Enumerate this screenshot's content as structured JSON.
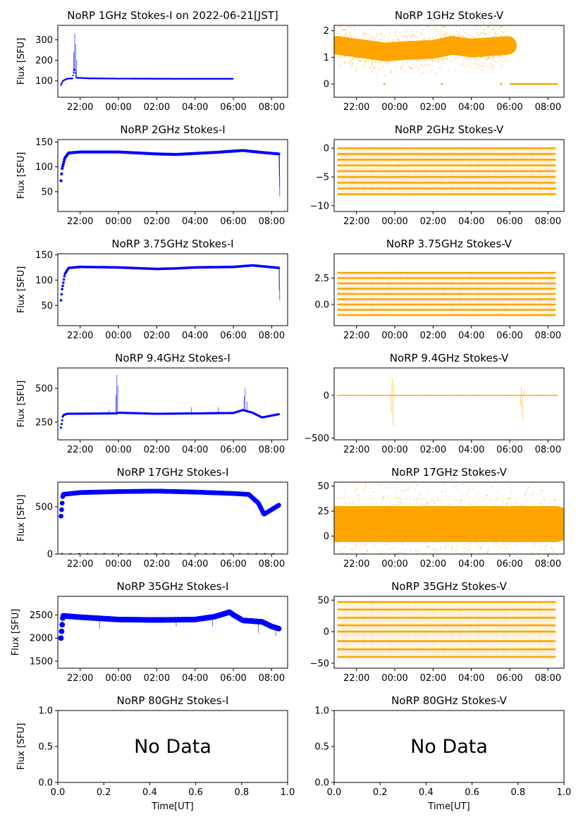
{
  "figure": {
    "colors": {
      "stokes_i": "#0000ff",
      "stokes_v": "#ffa500",
      "axis": "#000000",
      "background": "#ffffff"
    },
    "time_ticks": [
      "22:00",
      "00:00",
      "02:00",
      "04:00",
      "06:00",
      "08:00"
    ],
    "fraction_ticks": [
      "0.0",
      "0.2",
      "0.4",
      "0.6",
      "0.8",
      "1.0"
    ],
    "xlabel": "Time[UT]",
    "ylabel_i": "Flux [SFU]",
    "no_data_text": "No Data"
  },
  "chart_data": [
    {
      "id": "1ghz-i",
      "type": "scatter",
      "title": "NoRP 1GHz Stokes-I on 2022-06-21[JST]",
      "ylabel": "Flux [SFU]",
      "ylim": [
        20,
        370
      ],
      "yticks": [
        100,
        200,
        300
      ],
      "x_range_ut": [
        "20:50",
        "08:50"
      ],
      "data_span_ut": [
        "21:00",
        "06:00"
      ],
      "series": [
        {
          "color": "#0000ff",
          "profile": [
            [
              21.0,
              80
            ],
            [
              21.1,
              100
            ],
            [
              21.3,
              110
            ],
            [
              21.6,
              112
            ],
            [
              21.7,
              160
            ],
            [
              21.8,
              115
            ],
            [
              22.5,
              112
            ],
            [
              24,
              111
            ],
            [
              27,
              110
            ],
            [
              30,
              110
            ]
          ],
          "band": 4,
          "spikes": [
            [
              21.7,
              330
            ],
            [
              21.75,
              280
            ],
            [
              21.65,
              240
            ],
            [
              21.8,
              200
            ]
          ]
        }
      ]
    },
    {
      "id": "1ghz-v",
      "type": "scatter",
      "title": "NoRP 1GHz Stokes-V",
      "ylim": [
        -0.5,
        2.2
      ],
      "yticks": [
        0,
        1,
        2
      ],
      "x_range_ut": [
        "20:50",
        "08:50"
      ],
      "series": [
        {
          "color": "#ffa500",
          "profile": [
            [
              21.0,
              1.45
            ],
            [
              22.0,
              1.35
            ],
            [
              23.5,
              1.2
            ],
            [
              24.5,
              1.25
            ],
            [
              26.0,
              1.3
            ],
            [
              27.0,
              1.45
            ],
            [
              28.0,
              1.35
            ],
            [
              29.0,
              1.4
            ],
            [
              29.9,
              1.45
            ]
          ],
          "band": 0.35,
          "spread": 0.75,
          "zero_segments": [
            [
              23.4,
              23.5
            ],
            [
              26.4,
              26.5
            ],
            [
              29.5,
              29.6
            ],
            [
              30.0,
              32.5
            ]
          ]
        }
      ]
    },
    {
      "id": "2ghz-i",
      "type": "scatter",
      "title": "NoRP 2GHz Stokes-I",
      "ylabel": "Flux [SFU]",
      "ylim": [
        10,
        155
      ],
      "yticks": [
        50,
        100,
        150
      ],
      "x_range_ut": [
        "20:50",
        "08:50"
      ],
      "series": [
        {
          "color": "#0000ff",
          "profile": [
            [
              21.0,
              72
            ],
            [
              21.05,
              95
            ],
            [
              21.2,
              118
            ],
            [
              21.4,
              128
            ],
            [
              22,
              130
            ],
            [
              24,
              130
            ],
            [
              26,
              126
            ],
            [
              27,
              125
            ],
            [
              28,
              127
            ],
            [
              29,
              129
            ],
            [
              30.5,
              133
            ],
            [
              31.5,
              129
            ],
            [
              32.4,
              126
            ]
          ],
          "band": 3,
          "spikes": [
            [
              32.4,
              40
            ],
            [
              32.4,
              60
            ],
            [
              32.38,
              80
            ]
          ]
        }
      ]
    },
    {
      "id": "2ghz-v",
      "type": "scatter",
      "title": "NoRP 2GHz Stokes-V",
      "ylim": [
        -11,
        1.5
      ],
      "yticks": [
        -10,
        -5,
        0
      ],
      "x_range_ut": [
        "20:50",
        "08:50"
      ],
      "series": [
        {
          "color": "#ffa500",
          "levels": [
            0,
            -1,
            -2,
            -3,
            -4,
            -5,
            -6,
            -7,
            -8
          ],
          "span": [
            21.0,
            32.4
          ]
        }
      ]
    },
    {
      "id": "375ghz-i",
      "type": "scatter",
      "title": "NoRP 3.75GHz Stokes-I",
      "ylabel": "Flux [SFU]",
      "ylim": [
        10,
        152
      ],
      "yticks": [
        50,
        100,
        150
      ],
      "x_range_ut": [
        "20:50",
        "08:50"
      ],
      "series": [
        {
          "color": "#0000ff",
          "profile": [
            [
              21.0,
              60
            ],
            [
              21.05,
              80
            ],
            [
              21.2,
              112
            ],
            [
              21.4,
              124
            ],
            [
              22,
              126
            ],
            [
              24,
              125
            ],
            [
              26,
              122
            ],
            [
              27,
              123
            ],
            [
              28,
              125
            ],
            [
              30,
              126
            ],
            [
              31,
              129
            ],
            [
              32.4,
              124
            ]
          ],
          "band": 2.5,
          "spikes": [
            [
              32.4,
              60
            ],
            [
              32.38,
              80
            ]
          ]
        }
      ]
    },
    {
      "id": "375ghz-v",
      "type": "scatter",
      "title": "NoRP 3.75GHz Stokes-V",
      "ylim": [
        -2.0,
        4.8
      ],
      "yticks": [
        0.0,
        2.5
      ],
      "x_range_ut": [
        "20:50",
        "08:50"
      ],
      "series": [
        {
          "color": "#ffa500",
          "levels": [
            -1.0,
            -0.5,
            0.0,
            0.5,
            1.0,
            1.5,
            2.0,
            2.5,
            3.0
          ],
          "span": [
            21.0,
            32.4
          ]
        }
      ]
    },
    {
      "id": "94ghz-i",
      "type": "scatter",
      "title": "NoRP 9.4GHz Stokes-I",
      "ylabel": "Flux [SFU]",
      "ylim": [
        120,
        650
      ],
      "yticks": [
        250,
        500
      ],
      "x_range_ut": [
        "20:50",
        "08:50"
      ],
      "series": [
        {
          "color": "#0000ff",
          "profile": [
            [
              21.0,
              210
            ],
            [
              21.1,
              300
            ],
            [
              21.3,
              312
            ],
            [
              23.9,
              315
            ],
            [
              24,
              320
            ],
            [
              26,
              312
            ],
            [
              28,
              315
            ],
            [
              30,
              318
            ],
            [
              30.5,
              340
            ],
            [
              31.0,
              320
            ],
            [
              31.5,
              285
            ],
            [
              32.4,
              310
            ]
          ],
          "band": 8,
          "spikes": [
            [
              23.9,
              600
            ],
            [
              23.95,
              520
            ],
            [
              23.85,
              450
            ],
            [
              30.6,
              500
            ],
            [
              30.55,
              440
            ],
            [
              30.7,
              400
            ],
            [
              27.8,
              360
            ],
            [
              29.2,
              360
            ],
            [
              23.5,
              340
            ]
          ]
        }
      ]
    },
    {
      "id": "94ghz-v",
      "type": "scatter",
      "title": "NoRP 9.4GHz Stokes-V",
      "ylim": [
        -520,
        320
      ],
      "yticks": [
        -500,
        0
      ],
      "x_range_ut": [
        "20:50",
        "08:50"
      ],
      "series": [
        {
          "color": "#ffa500",
          "profile": [
            [
              21.0,
              0
            ],
            [
              32.5,
              0
            ]
          ],
          "band": 6,
          "spikes": [
            [
              23.85,
              200
            ],
            [
              23.9,
              -350
            ],
            [
              23.8,
              -200
            ],
            [
              23.95,
              120
            ],
            [
              30.6,
              100
            ],
            [
              30.65,
              -280
            ],
            [
              30.55,
              -120
            ],
            [
              30.75,
              60
            ]
          ]
        }
      ]
    },
    {
      "id": "17ghz-i",
      "type": "scatter",
      "title": "NoRP 17GHz Stokes-I",
      "ylabel": "Flux [SFU]",
      "ylim": [
        0,
        760
      ],
      "yticks": [
        0,
        500
      ],
      "x_range_ut": [
        "20:50",
        "08:50"
      ],
      "series": [
        {
          "color": "#0000ff",
          "profile": [
            [
              21.0,
              400
            ],
            [
              21.1,
              630
            ],
            [
              22,
              650
            ],
            [
              24,
              660
            ],
            [
              26,
              665
            ],
            [
              28,
              655
            ],
            [
              30,
              640
            ],
            [
              30.8,
              630
            ],
            [
              31.3,
              540
            ],
            [
              31.6,
              420
            ],
            [
              32.0,
              470
            ],
            [
              32.4,
              520
            ]
          ],
          "band": 25,
          "zero_segments": [
            [
              21.0,
              32.5
            ]
          ]
        }
      ]
    },
    {
      "id": "17ghz-v",
      "type": "scatter",
      "title": "NoRP 17GHz Stokes-V",
      "ylim": [
        -18,
        54
      ],
      "yticks": [
        0,
        25,
        50
      ],
      "x_range_ut": [
        "20:50",
        "08:50"
      ],
      "series": [
        {
          "color": "#ffa500",
          "profile": [
            [
              21.0,
              12
            ],
            [
              32.4,
              12
            ]
          ],
          "band": 18,
          "spread": 40,
          "zero_segments": [
            [
              20.9,
              21.05
            ],
            [
              32.4,
              32.6
            ]
          ]
        }
      ]
    },
    {
      "id": "35ghz-i",
      "type": "scatter",
      "title": "NoRP 35GHz Stokes-I",
      "ylabel": "Flux [SFU]",
      "ylim": [
        1350,
        2900
      ],
      "yticks": [
        1500,
        2000,
        2500
      ],
      "x_range_ut": [
        "20:50",
        "08:50"
      ],
      "series": [
        {
          "color": "#0000ff",
          "profile": [
            [
              21.0,
              2000
            ],
            [
              21.1,
              2480
            ],
            [
              22,
              2450
            ],
            [
              24,
              2400
            ],
            [
              26,
              2390
            ],
            [
              28,
              2400
            ],
            [
              29,
              2460
            ],
            [
              29.8,
              2560
            ],
            [
              30.0,
              2500
            ],
            [
              30.5,
              2380
            ],
            [
              31.5,
              2350
            ],
            [
              32.0,
              2250
            ],
            [
              32.4,
              2200
            ]
          ],
          "band": 60,
          "spikes": [
            [
              23.0,
              2200
            ],
            [
              27.0,
              2250
            ],
            [
              28.9,
              2250
            ],
            [
              31.3,
              2100
            ],
            [
              32.2,
              2050
            ]
          ]
        }
      ]
    },
    {
      "id": "35ghz-v",
      "type": "scatter",
      "title": "NoRP 35GHz Stokes-V",
      "ylim": [
        -58,
        56
      ],
      "yticks": [
        -50,
        0,
        50
      ],
      "x_range_ut": [
        "20:50",
        "08:50"
      ],
      "series": [
        {
          "color": "#ffa500",
          "levels": [
            -40,
            -28,
            -15,
            0,
            10,
            22,
            35,
            47
          ],
          "span": [
            21.0,
            32.4
          ]
        }
      ]
    },
    {
      "id": "80ghz-i",
      "type": "scatter",
      "title": "NoRP 80GHz Stokes-I",
      "ylabel": "Flux [SFU]",
      "xlabel": "Time[UT]",
      "xlim": [
        0,
        1
      ],
      "ylim": [
        0,
        1
      ],
      "yticks": [
        0.0,
        0.5,
        1.0
      ],
      "no_data": true,
      "series": []
    },
    {
      "id": "80ghz-v",
      "type": "scatter",
      "title": "NoRP 80GHz Stokes-V",
      "xlabel": "Time[UT]",
      "xlim": [
        0,
        1
      ],
      "ylim": [
        0,
        1
      ],
      "yticks": [
        0.0,
        0.5,
        1.0
      ],
      "no_data": true,
      "series": []
    }
  ]
}
